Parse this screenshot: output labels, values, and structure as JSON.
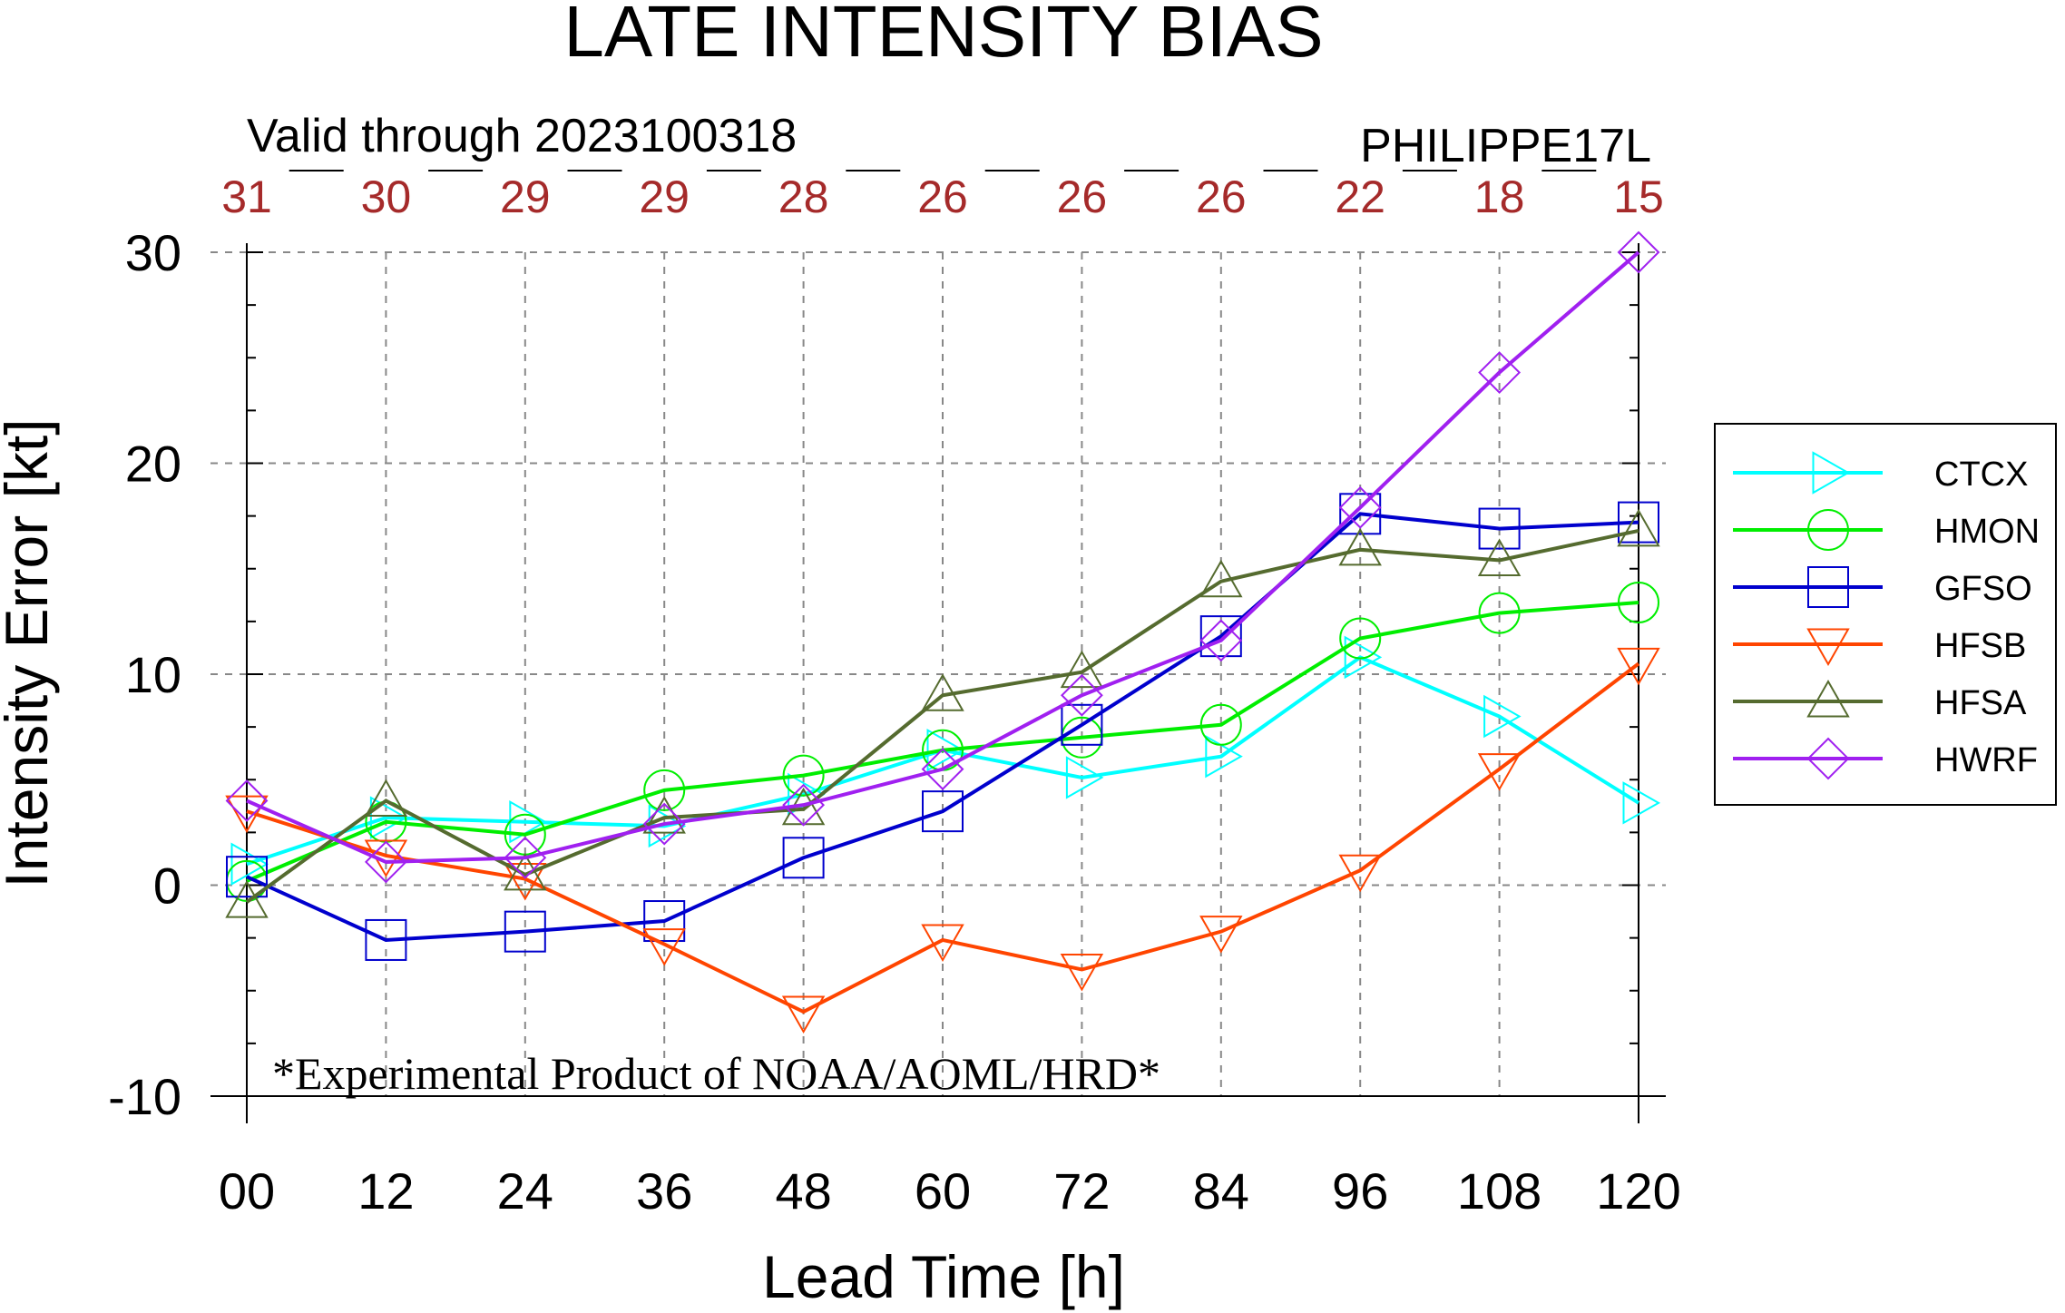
{
  "chart_data": {
    "type": "line",
    "title": "LATE INTENSITY BIAS",
    "subtitle_left": "Valid through 2023100318",
    "subtitle_right": "PHILIPPE17L",
    "xlabel": "Lead Time [h]",
    "ylabel": "Intensity Error [kt]",
    "x": [
      0,
      12,
      24,
      36,
      48,
      60,
      72,
      84,
      96,
      108,
      120
    ],
    "x_tick_labels": [
      "00",
      "12",
      "24",
      "36",
      "48",
      "60",
      "72",
      "84",
      "96",
      "108",
      "120"
    ],
    "y_ticks": [
      30,
      20,
      10,
      0,
      -10
    ],
    "y_tick_labels": [
      "30",
      "20",
      "10",
      "0",
      "-10"
    ],
    "ylim": [
      -10,
      30
    ],
    "sample_counts": [
      "31",
      "30",
      "29",
      "29",
      "28",
      "26",
      "26",
      "26",
      "22",
      "18",
      "15"
    ],
    "grid": true,
    "legend_position": "right",
    "annotation": "*Experimental Product of NOAA/AOML/HRD*",
    "series": [
      {
        "name": "CTCX",
        "color": "#00ffff",
        "marker": "triangle-right",
        "values": [
          1.0,
          3.2,
          3.0,
          2.8,
          4.3,
          6.4,
          5.1,
          6.1,
          10.8,
          8.0,
          3.9
        ]
      },
      {
        "name": "HMON",
        "color": "#00ee00",
        "marker": "circle",
        "values": [
          0.2,
          3.0,
          2.4,
          4.5,
          5.2,
          6.4,
          7.0,
          7.6,
          11.7,
          12.9,
          13.4
        ]
      },
      {
        "name": "GFSO",
        "color": "#0000cd",
        "marker": "square",
        "values": [
          0.4,
          -2.6,
          -2.2,
          -1.7,
          1.3,
          3.5,
          7.6,
          11.8,
          17.6,
          16.9,
          17.2
        ]
      },
      {
        "name": "HFSB",
        "color": "#ff4500",
        "marker": "triangle-down",
        "values": [
          3.5,
          1.4,
          0.3,
          -2.8,
          -6.0,
          -2.6,
          -4.0,
          -2.2,
          0.7,
          5.5,
          10.5
        ]
      },
      {
        "name": "HFSA",
        "color": "#556b2f",
        "marker": "triangle-up",
        "values": [
          -0.8,
          4.0,
          0.5,
          3.2,
          3.6,
          9.0,
          10.1,
          14.4,
          15.9,
          15.4,
          16.8
        ]
      },
      {
        "name": "HWRF",
        "color": "#a020f0",
        "marker": "diamond",
        "values": [
          4.0,
          1.1,
          1.3,
          2.9,
          3.8,
          5.5,
          9.0,
          11.6,
          17.9,
          24.3,
          30.0
        ]
      }
    ]
  }
}
